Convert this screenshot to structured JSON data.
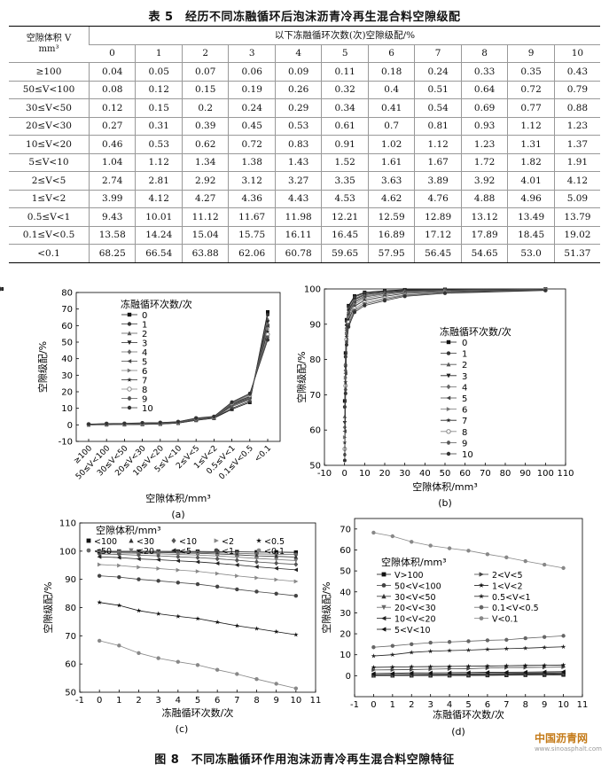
{
  "table": {
    "caption": "表 5　经历不同冻融循环后泡沫沥青冷再生混合料空隙级配",
    "header_col": "空隙体积 V",
    "header_unit": "mm³",
    "header_group": "以下冻融循环次数(次)空隙级配/%",
    "cycles": [
      "0",
      "1",
      "2",
      "3",
      "4",
      "5",
      "6",
      "7",
      "8",
      "9",
      "10"
    ],
    "rows": [
      {
        "label": "≥100",
        "values": [
          "0.04",
          "0.05",
          "0.07",
          "0.06",
          "0.09",
          "0.11",
          "0.18",
          "0.24",
          "0.33",
          "0.35",
          "0.43"
        ]
      },
      {
        "label": "50≤V<100",
        "values": [
          "0.08",
          "0.12",
          "0.15",
          "0.19",
          "0.26",
          "0.32",
          "0.4",
          "0.51",
          "0.64",
          "0.72",
          "0.79"
        ]
      },
      {
        "label": "30≤V<50",
        "values": [
          "0.12",
          "0.15",
          "0.2",
          "0.24",
          "0.29",
          "0.34",
          "0.41",
          "0.54",
          "0.69",
          "0.77",
          "0.88"
        ]
      },
      {
        "label": "20≤V<30",
        "values": [
          "0.27",
          "0.31",
          "0.39",
          "0.45",
          "0.53",
          "0.61",
          "0.7",
          "0.81",
          "0.93",
          "1.12",
          "1.23"
        ]
      },
      {
        "label": "10≤V<20",
        "values": [
          "0.46",
          "0.53",
          "0.62",
          "0.72",
          "0.83",
          "0.91",
          "1.02",
          "1.12",
          "1.23",
          "1.31",
          "1.37"
        ]
      },
      {
        "label": "5≤V<10",
        "values": [
          "1.04",
          "1.12",
          "1.34",
          "1.38",
          "1.43",
          "1.52",
          "1.61",
          "1.67",
          "1.72",
          "1.82",
          "1.91"
        ]
      },
      {
        "label": "2≤V<5",
        "values": [
          "2.74",
          "2.81",
          "2.92",
          "3.12",
          "3.27",
          "3.35",
          "3.63",
          "3.89",
          "3.92",
          "4.01",
          "4.12"
        ]
      },
      {
        "label": "1≤V<2",
        "values": [
          "3.99",
          "4.12",
          "4.27",
          "4.36",
          "4.43",
          "4.53",
          "4.62",
          "4.76",
          "4.88",
          "4.96",
          "5.09"
        ]
      },
      {
        "label": "0.5≤V<1",
        "values": [
          "9.43",
          "10.01",
          "11.12",
          "11.67",
          "11.98",
          "12.21",
          "12.59",
          "12.89",
          "13.12",
          "13.49",
          "13.79"
        ]
      },
      {
        "label": "0.1≤V<0.5",
        "values": [
          "13.58",
          "14.24",
          "15.04",
          "15.75",
          "16.11",
          "16.45",
          "16.89",
          "17.12",
          "17.89",
          "18.45",
          "19.02"
        ]
      },
      {
        "label": "<0.1",
        "values": [
          "68.25",
          "66.54",
          "63.88",
          "62.06",
          "60.78",
          "59.65",
          "57.95",
          "56.45",
          "54.65",
          "53.0",
          "51.37"
        ]
      }
    ]
  },
  "figure_caption": "图 8　不同冻融循环作用泡沫沥青冷再生混合料空隙特征",
  "watermark": {
    "main": "中国沥青网",
    "sub": "www.sinoasphalt.com"
  },
  "chart_data": [
    {
      "id": "a",
      "type": "line",
      "label": "(a)",
      "ylabel": "空隙级配/%",
      "xlabel": "空隙体积/mm³",
      "ylim": [
        -10,
        80
      ],
      "yticks": [
        "-10",
        "0",
        "10",
        "20",
        "30",
        "40",
        "50",
        "60",
        "70",
        "80"
      ],
      "categories": [
        "≥100",
        "50≤V<100",
        "30≤V<50",
        "20≤V<30",
        "10≤V<20",
        "5≤V<10",
        "2≤V<5",
        "1≤V<2",
        "0.5≤V<1",
        "0.1≤V<0.5",
        "<0.1"
      ],
      "legend_title": "冻融循环次数/次",
      "legend": [
        "0",
        "1",
        "2",
        "3",
        "4",
        "5",
        "6",
        "7",
        "8",
        "9",
        "10"
      ]
    },
    {
      "id": "b",
      "type": "line",
      "label": "(b)",
      "ylabel": "空隙级配/%",
      "xlabel": "空隙体积/mm³",
      "xlim": [
        -10,
        110
      ],
      "ylim": [
        50,
        100
      ],
      "xticks": [
        "-10",
        "0",
        "10",
        "20",
        "30",
        "40",
        "50",
        "60",
        "70",
        "80",
        "90",
        "100",
        "110"
      ],
      "yticks": [
        "50",
        "60",
        "70",
        "80",
        "90",
        "100"
      ],
      "x": [
        0.1,
        0.5,
        1,
        2,
        5,
        10,
        20,
        30,
        50,
        100
      ],
      "legend_title": "冻融循环次数/次",
      "legend": [
        "0",
        "1",
        "2",
        "3",
        "4",
        "5",
        "6",
        "7",
        "8",
        "9",
        "10"
      ]
    },
    {
      "id": "c",
      "type": "line",
      "label": "(c)",
      "ylabel": "空隙级配/%",
      "xlabel": "冻融循环次数/次",
      "xlim": [
        -1,
        11
      ],
      "ylim": [
        50,
        110
      ],
      "xticks": [
        "-1",
        "0",
        "1",
        "2",
        "3",
        "4",
        "5",
        "6",
        "7",
        "8",
        "9",
        "10",
        "11"
      ],
      "yticks": [
        "50",
        "60",
        "70",
        "80",
        "90",
        "100",
        "110"
      ],
      "legend_title": "空隙体积/mm³",
      "legend": [
        "<100",
        "<50",
        "<30",
        "<20",
        "<10",
        "<5",
        "<2",
        "<1",
        "<0.5",
        "<0.1"
      ]
    },
    {
      "id": "d",
      "type": "line",
      "label": "(d)",
      "ylabel": "空隙级配/%",
      "xlabel": "冻融循环次数/次",
      "xlim": [
        -1,
        11
      ],
      "ylim": [
        -10,
        75
      ],
      "xticks": [
        "-1",
        "0",
        "1",
        "2",
        "3",
        "4",
        "5",
        "6",
        "7",
        "8",
        "9",
        "10",
        "11"
      ],
      "yticks": [
        "0",
        "10",
        "20",
        "30",
        "40",
        "50",
        "60",
        "70"
      ],
      "legend_title": "空隙体积/mm³",
      "legend": [
        "V>100",
        "50<V<100",
        "30<V<50",
        "20<V<30",
        "10<V<20",
        "5<V<10",
        "2<V<5",
        "1<V<2",
        "0.5<V<1",
        "0.1<V<0.5",
        "V<0.1"
      ]
    }
  ]
}
